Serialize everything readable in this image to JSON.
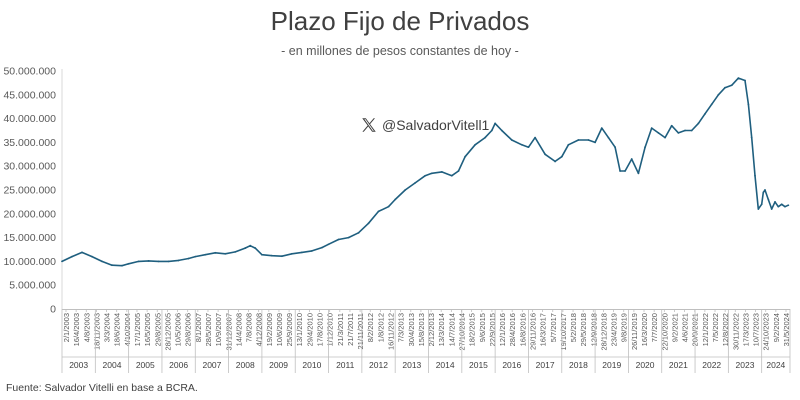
{
  "chart_data": {
    "type": "line",
    "title": "Plazo Fijo de Privados",
    "subtitle": "- en millones de pesos constantes de hoy -",
    "watermark": "@SalvadorVitell1",
    "source": "Fuente: Salvador Vitelli en base a BCRA.",
    "ylim": [
      0,
      50000000
    ],
    "yticks": [
      0,
      5000000,
      10000000,
      15000000,
      20000000,
      25000000,
      30000000,
      35000000,
      40000000,
      45000000,
      50000000
    ],
    "ytick_labels": [
      "0",
      "5.000.000",
      "10.000.000",
      "15.000.000",
      "20.000.000",
      "25.000.000",
      "30.000.000",
      "35.000.000",
      "40.000.000",
      "45.000.000",
      "50.000.000"
    ],
    "xlim": [
      2003.0,
      2024.85
    ],
    "date_labels": [
      "2/1/2003",
      "16/4/2003",
      "4/8/2003",
      "18/11/2003",
      "3/3/2004",
      "18/6/2004",
      "4/10/2004",
      "17/1/2005",
      "16/5/2005",
      "29/8/2005",
      "28/12/2005",
      "10/5/2006",
      "29/8/2006",
      "8/1/2007",
      "28/5/2007",
      "10/9/2007",
      "31/12/2007",
      "14/4/2008",
      "7/8/2008",
      "4/12/2008",
      "19/2/2009",
      "10/6/2009",
      "25/9/2009",
      "13/1/2010",
      "29/4/2010",
      "17/8/2010",
      "1/12/2010",
      "21/3/2011",
      "21/7/2011",
      "21/11/2011",
      "8/2/2012",
      "1/8/2012",
      "16/11/2012",
      "7/3/2013",
      "30/4/2013",
      "15/8/2013",
      "2/12/2013",
      "13/3/2014",
      "14/7/2014",
      "27/10/2014",
      "18/2/2015",
      "9/6/2015",
      "22/9/2015",
      "12/1/2016",
      "28/4/2016",
      "16/8/2016",
      "29/11/2016",
      "16/3/2017",
      "5/7/2017",
      "19/10/2017",
      "5/2/2018",
      "29/5/2018",
      "12/9/2018",
      "28/12/2018",
      "23/4/2019",
      "9/8/2019",
      "26/11/2019",
      "16/3/2020",
      "7/7/2020",
      "22/10/2020",
      "9/2/2021",
      "4/6/2021",
      "20/9/2021",
      "12/1/2022",
      "7/5/2022",
      "12/8/2022",
      "30/11/2022",
      "17/3/2023",
      "10/7/2023",
      "24/10/2023",
      "9/2/2024",
      "31/5/2024"
    ],
    "years": [
      "2003",
      "2004",
      "2005",
      "2006",
      "2007",
      "2008",
      "2009",
      "2010",
      "2011",
      "2012",
      "2013",
      "2014",
      "2015",
      "2016",
      "2017",
      "2018",
      "2019",
      "2020",
      "2021",
      "2022",
      "2023",
      "2024"
    ],
    "series": [
      {
        "name": "Plazo Fijo de Privados",
        "color": "#1f5f7f",
        "x": [
          2003.0,
          2003.3,
          2003.6,
          2003.9,
          2004.2,
          2004.5,
          2004.8,
          2005.0,
          2005.3,
          2005.6,
          2005.9,
          2006.2,
          2006.5,
          2006.8,
          2007.0,
          2007.3,
          2007.6,
          2007.9,
          2008.2,
          2008.5,
          2008.65,
          2008.8,
          2009.0,
          2009.3,
          2009.6,
          2009.9,
          2010.2,
          2010.5,
          2010.8,
          2011.0,
          2011.3,
          2011.6,
          2011.9,
          2012.2,
          2012.5,
          2012.8,
          2013.0,
          2013.3,
          2013.6,
          2013.9,
          2014.1,
          2014.4,
          2014.7,
          2014.9,
          2015.1,
          2015.4,
          2015.7,
          2015.9,
          2016.0,
          2016.2,
          2016.5,
          2016.8,
          2017.0,
          2017.2,
          2017.5,
          2017.8,
          2018.0,
          2018.2,
          2018.5,
          2018.8,
          2019.0,
          2019.2,
          2019.4,
          2019.6,
          2019.75,
          2019.9,
          2020.1,
          2020.3,
          2020.5,
          2020.7,
          2020.9,
          2021.1,
          2021.3,
          2021.5,
          2021.7,
          2021.9,
          2022.1,
          2022.3,
          2022.5,
          2022.7,
          2022.9,
          2023.1,
          2023.3,
          2023.5,
          2023.6,
          2023.7,
          2023.8,
          2023.9,
          2024.0,
          2024.05,
          2024.1,
          2024.2,
          2024.3,
          2024.4,
          2024.5,
          2024.6,
          2024.7,
          2024.8
        ],
        "values": [
          10000000,
          11000000,
          11900000,
          11000000,
          10000000,
          9200000,
          9100000,
          9500000,
          10000000,
          10100000,
          10000000,
          10000000,
          10200000,
          10600000,
          11000000,
          11400000,
          11800000,
          11600000,
          12000000,
          12800000,
          13300000,
          12800000,
          11400000,
          11200000,
          11100000,
          11600000,
          11900000,
          12200000,
          12900000,
          13600000,
          14600000,
          15000000,
          16000000,
          18000000,
          20500000,
          21500000,
          23000000,
          25000000,
          26500000,
          28000000,
          28500000,
          28800000,
          28000000,
          29000000,
          32000000,
          34500000,
          36000000,
          37500000,
          39000000,
          37500000,
          35500000,
          34500000,
          34000000,
          36000000,
          32500000,
          31000000,
          32000000,
          34500000,
          35500000,
          35500000,
          35000000,
          38000000,
          36000000,
          34000000,
          29000000,
          29000000,
          31500000,
          28500000,
          34000000,
          38000000,
          37000000,
          36000000,
          38500000,
          37000000,
          37500000,
          37500000,
          39000000,
          41000000,
          43000000,
          45000000,
          46500000,
          47000000,
          48500000,
          48000000,
          43000000,
          36000000,
          28000000,
          21000000,
          22000000,
          24500000,
          25000000,
          23000000,
          21000000,
          22500000,
          21500000,
          22000000,
          21500000,
          21800000
        ]
      }
    ]
  }
}
